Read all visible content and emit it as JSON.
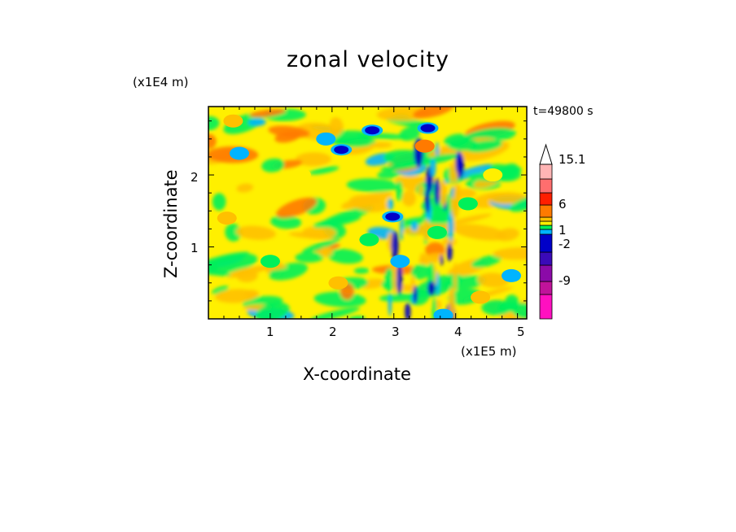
{
  "chart_data": {
    "type": "heatmap",
    "title": "zonal velocity",
    "xlabel": "X-coordinate",
    "ylabel": "Z-coordinate",
    "x_unit": "(x1E5 m)",
    "z_unit": "(x1E4 m)",
    "time_label": "t=49800 s",
    "xlim": [
      0,
      5.15
    ],
    "ylim": [
      0,
      2.95
    ],
    "x_ticks": [
      "1",
      "2",
      "3",
      "4",
      "5"
    ],
    "y_ticks": [
      "1",
      "2"
    ],
    "colorbar": {
      "labels": [
        "15.1",
        "6",
        "1",
        "-2",
        "-9"
      ],
      "bands": [
        {
          "color": "#ff10c0",
          "label": ""
        },
        {
          "color": "#c0139a",
          "label": ""
        },
        {
          "color": "#8b0aa8",
          "label": "-9"
        },
        {
          "color": "#3a0ab8",
          "label": ""
        },
        {
          "color": "#0000c8",
          "label": "-2"
        },
        {
          "color": "#00b4ff",
          "label": ""
        },
        {
          "color": "#00f05a",
          "label": ""
        },
        {
          "color": "#fff000",
          "label": "1"
        },
        {
          "color": "#ffc000",
          "label": ""
        },
        {
          "color": "#ff7a00",
          "label": "6"
        },
        {
          "color": "#ff1e00",
          "label": ""
        },
        {
          "color": "#ff6e6e",
          "label": ""
        },
        {
          "color": "#ffb4b4",
          "label": "15.1"
        }
      ],
      "overflow": "triangle-top"
    },
    "field_features": [
      {
        "x": 2.65,
        "z": 2.62,
        "band": 4
      },
      {
        "x": 3.55,
        "z": 2.65,
        "band": 4
      },
      {
        "x": 2.15,
        "z": 2.35,
        "band": 4
      },
      {
        "x": 2.98,
        "z": 1.42,
        "band": 4
      },
      {
        "x": 3.5,
        "z": 2.4,
        "band": 9
      },
      {
        "x": 3.8,
        "z": 0.05,
        "band": 5
      },
      {
        "x": 0.5,
        "z": 2.3,
        "band": 5
      },
      {
        "x": 1.9,
        "z": 2.5,
        "band": 5
      },
      {
        "x": 3.1,
        "z": 0.8,
        "band": 5
      },
      {
        "x": 4.9,
        "z": 0.6,
        "band": 5
      },
      {
        "x": 0.4,
        "z": 2.75,
        "band": 8
      },
      {
        "x": 0.3,
        "z": 1.4,
        "band": 8
      },
      {
        "x": 2.1,
        "z": 0.5,
        "band": 8
      },
      {
        "x": 1.0,
        "z": 0.8,
        "band": 6
      },
      {
        "x": 2.6,
        "z": 1.1,
        "band": 6
      },
      {
        "x": 4.2,
        "z": 1.6,
        "band": 6
      },
      {
        "x": 3.7,
        "z": 1.2,
        "band": 6
      },
      {
        "x": 1.5,
        "z": 2.0,
        "band": 7
      },
      {
        "x": 4.6,
        "z": 2.0,
        "band": 7
      },
      {
        "x": 4.4,
        "z": 0.3,
        "band": 8
      }
    ]
  }
}
